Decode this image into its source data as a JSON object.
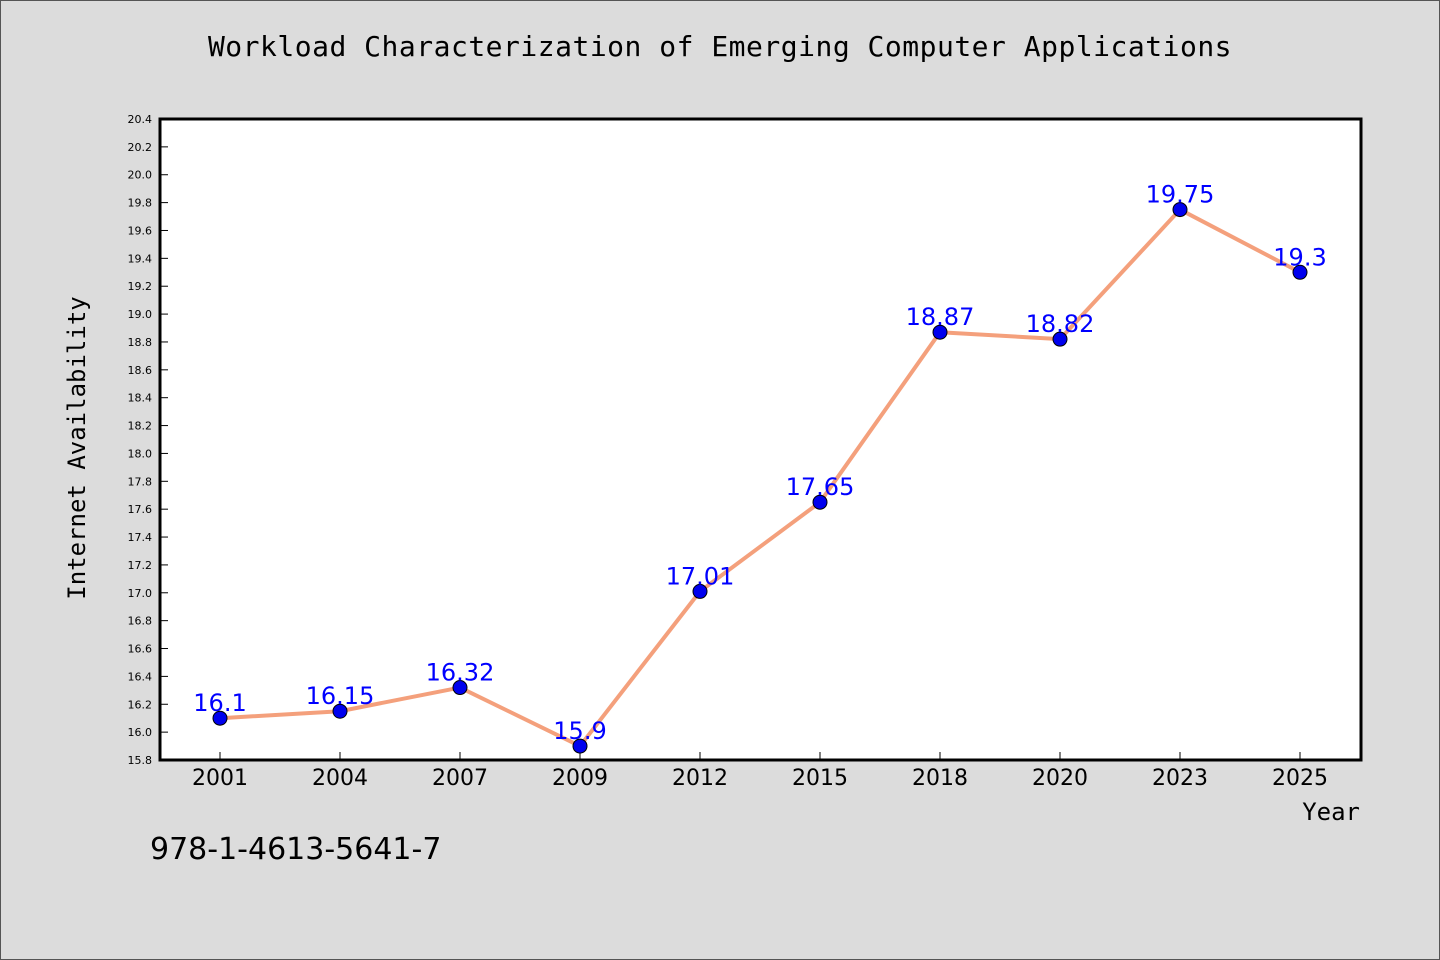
{
  "chart_data": {
    "type": "line",
    "title": "Workload Characterization of Emerging Computer Applications",
    "xlabel": "Year",
    "ylabel": "Internet Availability",
    "categories": [
      "2001",
      "2004",
      "2007",
      "2009",
      "2012",
      "2015",
      "2018",
      "2020",
      "2023",
      "2025"
    ],
    "series": [
      {
        "values": [
          16.1,
          16.15,
          16.32,
          15.9,
          17.01,
          17.65,
          18.87,
          18.82,
          19.75,
          19.3
        ],
        "data_labels": [
          "16.1",
          "16.15",
          "16.32",
          "15.9",
          "17.01",
          "17.65",
          "18.87",
          "18.82",
          "19.75",
          "19.3"
        ]
      }
    ],
    "ylim": [
      15.8,
      20.4
    ],
    "yticks": [
      "15.8",
      "16.0",
      "16.2",
      "16.4",
      "16.6",
      "16.8",
      "17.0",
      "17.2",
      "17.4",
      "17.6",
      "17.8",
      "18.0",
      "18.2",
      "18.4",
      "18.6",
      "18.8",
      "19.0",
      "19.2",
      "19.4",
      "19.6",
      "19.8",
      "20.0",
      "20.2",
      "20.4"
    ],
    "grid": false,
    "line_color": "#f4a07c",
    "marker_color": "#0000ee",
    "label_color": "#0000ff",
    "background_color": "#dcdcdc",
    "plot_background": "#ffffff"
  },
  "footer": {
    "isbn": "978-1-4613-5641-7"
  }
}
